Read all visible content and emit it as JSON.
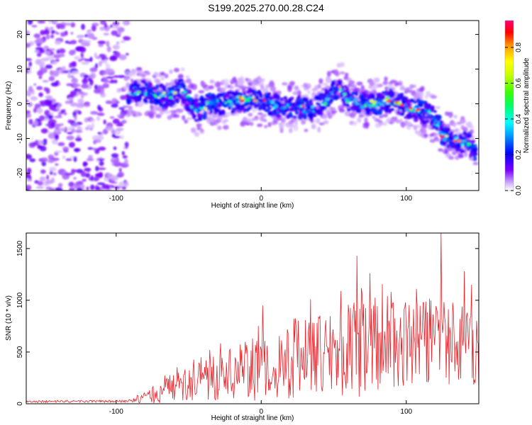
{
  "title": "S199.2025.270.00.28.C24",
  "chart_data": [
    {
      "type": "heatmap",
      "name": "spectrogram",
      "xlabel": "Height of straight line (km)",
      "ylabel": "Frequency (Hz)",
      "xlim": [
        -162,
        150
      ],
      "ylim": [
        -25,
        24
      ],
      "xticks": [
        -100,
        0,
        100
      ],
      "yticks": [
        -20,
        -10,
        0,
        10,
        20
      ],
      "noise_region_x": [
        -162,
        -92
      ],
      "ridge": {
        "x": [
          -92,
          -85,
          -75,
          -65,
          -55,
          -45,
          -35,
          -25,
          -15,
          -5,
          5,
          15,
          25,
          35,
          45,
          50,
          55,
          60,
          70,
          80,
          90,
          100,
          110,
          120,
          125,
          130,
          140,
          148
        ],
        "freq": [
          2,
          4,
          3,
          2,
          4,
          -2,
          0,
          0,
          1,
          1,
          0,
          -1,
          -1,
          -2,
          1,
          4,
          5,
          1,
          0,
          0,
          1,
          -1,
          -2,
          -4,
          -9,
          -10,
          -11,
          -13
        ]
      },
      "colorbar": {
        "label": "Normalized spectral amplitude",
        "min": 0.0,
        "max": 0.95,
        "ticks": [
          "0.0",
          "0.2",
          "0.4",
          "0.6",
          "0.8"
        ],
        "tick_values": [
          0.0,
          0.2,
          0.4,
          0.6,
          0.8
        ]
      }
    },
    {
      "type": "line",
      "name": "snr",
      "xlabel": "Height of straight line (km)",
      "ylabel": "SNR (10 * v/v)",
      "xlim": [
        -162,
        150
      ],
      "ylim": [
        0,
        1650
      ],
      "xticks": [
        -100,
        0,
        100
      ],
      "yticks": [
        0,
        500,
        1000,
        1500
      ],
      "color": "#e8232a",
      "envelope": {
        "x": [
          -162,
          -90,
          -80,
          -60,
          -40,
          -20,
          0,
          20,
          40,
          60,
          80,
          100,
          120,
          140,
          150
        ],
        "mean": [
          20,
          25,
          60,
          150,
          230,
          290,
          350,
          420,
          480,
          520,
          540,
          580,
          610,
          520,
          350
        ],
        "amplitude": [
          10,
          12,
          60,
          140,
          200,
          260,
          320,
          380,
          420,
          460,
          470,
          430,
          460,
          420,
          300
        ]
      },
      "peaks": [
        {
          "x": 1,
          "y": 950
        },
        {
          "x": 34,
          "y": 1010
        },
        {
          "x": 55,
          "y": 1090
        },
        {
          "x": 66,
          "y": 1430
        },
        {
          "x": 75,
          "y": 1260
        },
        {
          "x": 124,
          "y": 1650
        },
        {
          "x": 140,
          "y": 1280
        },
        {
          "x": 145,
          "y": 1150
        }
      ]
    }
  ]
}
